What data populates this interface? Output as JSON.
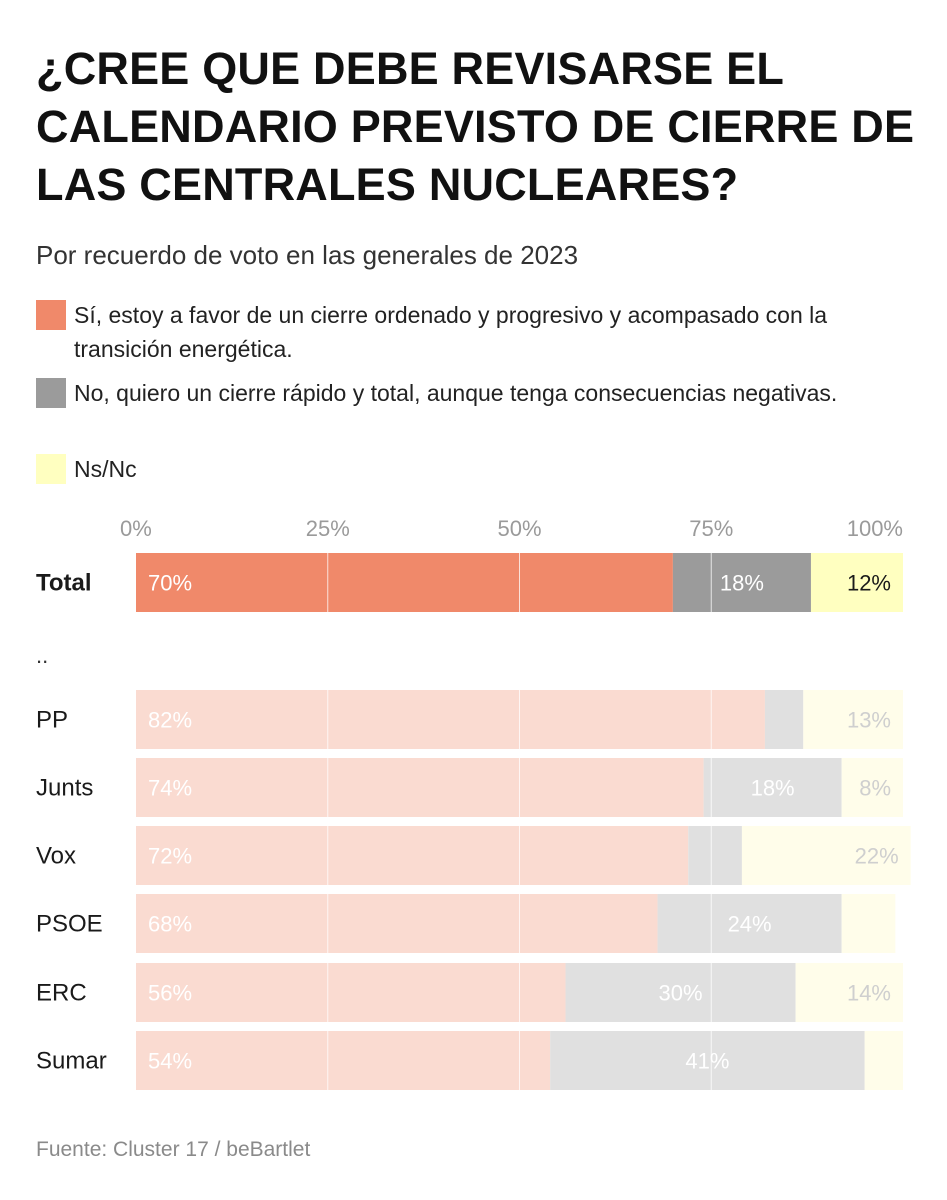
{
  "chart_data": {
    "type": "bar",
    "orientation": "horizontal",
    "stacked": true,
    "title_lines": [
      "¿CREE QUE DEBE REVISARSE EL",
      "CALENDARIO PREVISTO DE CIERRE DE",
      "LAS CENTRALES NUCLEARES?"
    ],
    "subtitle": "Por recuerdo de voto en las generales de 2023",
    "xlim": [
      0,
      100
    ],
    "x_ticks": [
      "0%",
      "25%",
      "50%",
      "75%",
      "100%"
    ],
    "grid": true,
    "legend_position": "top",
    "separator_label": "..",
    "series": [
      {
        "name": "Sí, estoy a favor de un cierre ordenado y progresivo y acompasado con la transición energética.",
        "color": "#f0896a",
        "color_faded": "#fadbd1"
      },
      {
        "name": "No, quiero un cierre rápido y total, aunque tenga consecuencias negativas.",
        "color": "#9b9b9b",
        "color_faded": "#e0e0e0"
      },
      {
        "name": "Ns/Nc",
        "color": "#ffffc0",
        "color_faded": "#fffdea"
      }
    ],
    "rows": [
      {
        "category": "Total",
        "values": [
          70,
          18,
          12
        ],
        "labels": [
          "70%",
          "18%",
          "12%"
        ],
        "highlight": true
      },
      {
        "category": "PP",
        "values": [
          82,
          5,
          13
        ],
        "labels": [
          "82%",
          "",
          "13%"
        ],
        "highlight": false
      },
      {
        "category": "Junts",
        "values": [
          74,
          18,
          8
        ],
        "labels": [
          "74%",
          "18%",
          "8%"
        ],
        "highlight": false
      },
      {
        "category": "Vox",
        "values": [
          72,
          7,
          22
        ],
        "labels": [
          "72%",
          "",
          "22%"
        ],
        "highlight": false
      },
      {
        "category": "PSOE",
        "values": [
          68,
          24,
          7
        ],
        "labels": [
          "68%",
          "24%",
          ""
        ],
        "highlight": false
      },
      {
        "category": "ERC",
        "values": [
          56,
          30,
          14
        ],
        "labels": [
          "56%",
          "30%",
          "14%"
        ],
        "highlight": false
      },
      {
        "category": "Sumar",
        "values": [
          54,
          41,
          5
        ],
        "labels": [
          "54%",
          "41%",
          ""
        ],
        "highlight": false
      }
    ]
  },
  "source": "Fuente: Cluster 17 / beBartlet"
}
